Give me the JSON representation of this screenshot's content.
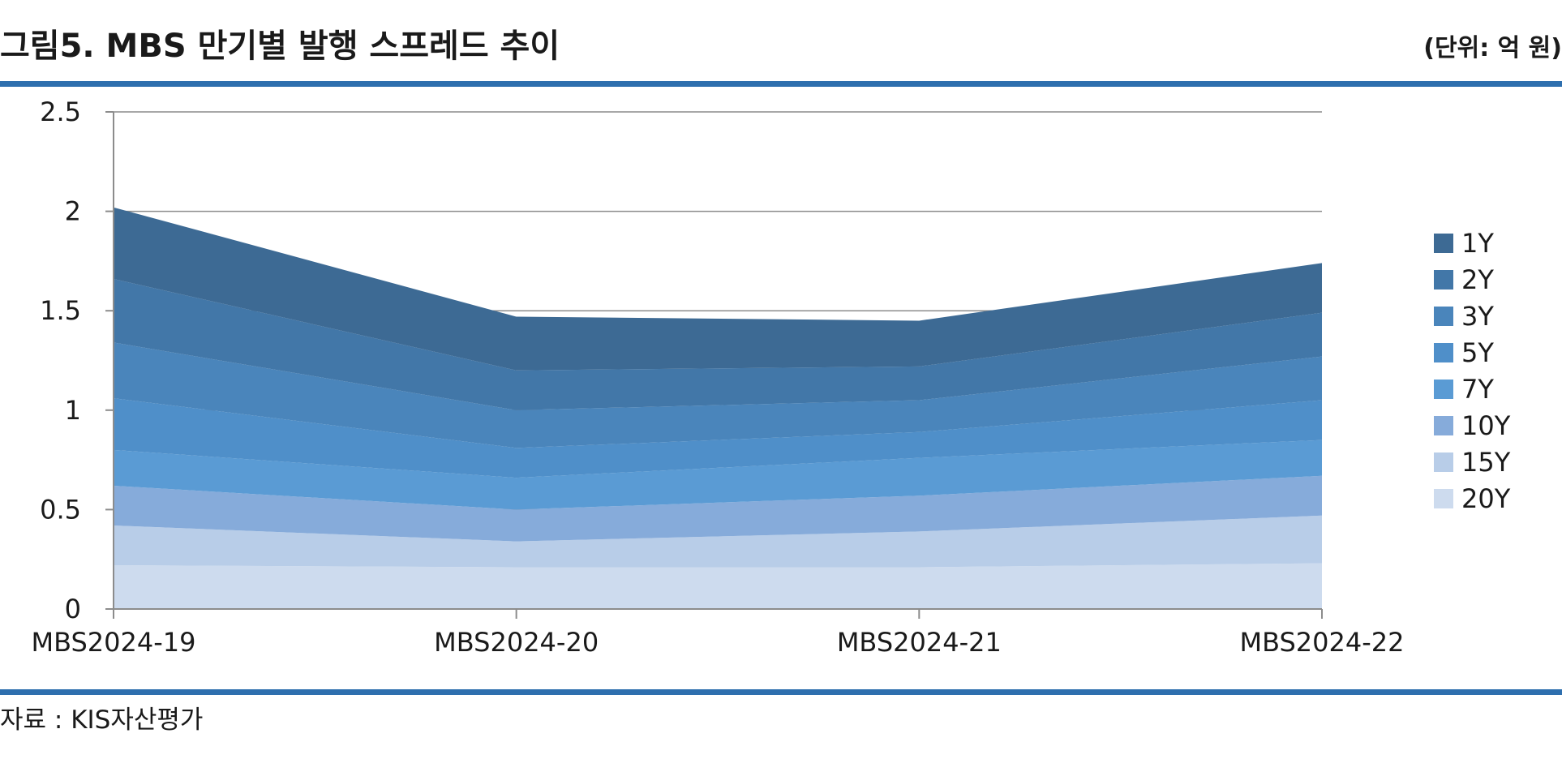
{
  "header": {
    "title": "그림5. MBS 만기별 발행 스프레드 추이",
    "unit": "(단위: 억 원)"
  },
  "footer": {
    "source": "자료 : KIS자산평가"
  },
  "chart_data": {
    "type": "area",
    "stacked": true,
    "categories": [
      "MBS2024-19",
      "MBS2024-20",
      "MBS2024-21",
      "MBS2024-22"
    ],
    "ylim": [
      0,
      2.5
    ],
    "yticks": [
      0,
      0.5,
      1,
      1.5,
      2,
      2.5
    ],
    "grid": true,
    "legend_position": "right",
    "series": [
      {
        "name": "20Y",
        "color": "#cddbee",
        "values": [
          0.22,
          0.21,
          0.21,
          0.23
        ]
      },
      {
        "name": "15Y",
        "color": "#b8cde8",
        "values": [
          0.2,
          0.13,
          0.18,
          0.24
        ]
      },
      {
        "name": "10Y",
        "color": "#86abda",
        "values": [
          0.2,
          0.16,
          0.18,
          0.2
        ]
      },
      {
        "name": "7Y",
        "color": "#5a9bd4",
        "values": [
          0.18,
          0.16,
          0.19,
          0.18
        ]
      },
      {
        "name": "5Y",
        "color": "#4f8fc9",
        "values": [
          0.26,
          0.15,
          0.13,
          0.2
        ]
      },
      {
        "name": "3Y",
        "color": "#4a85bb",
        "values": [
          0.28,
          0.19,
          0.16,
          0.22
        ]
      },
      {
        "name": "2Y",
        "color": "#4277a8",
        "values": [
          0.32,
          0.2,
          0.17,
          0.22
        ]
      },
      {
        "name": "1Y",
        "color": "#3d6a94",
        "values": [
          0.36,
          0.27,
          0.23,
          0.25
        ]
      }
    ]
  }
}
